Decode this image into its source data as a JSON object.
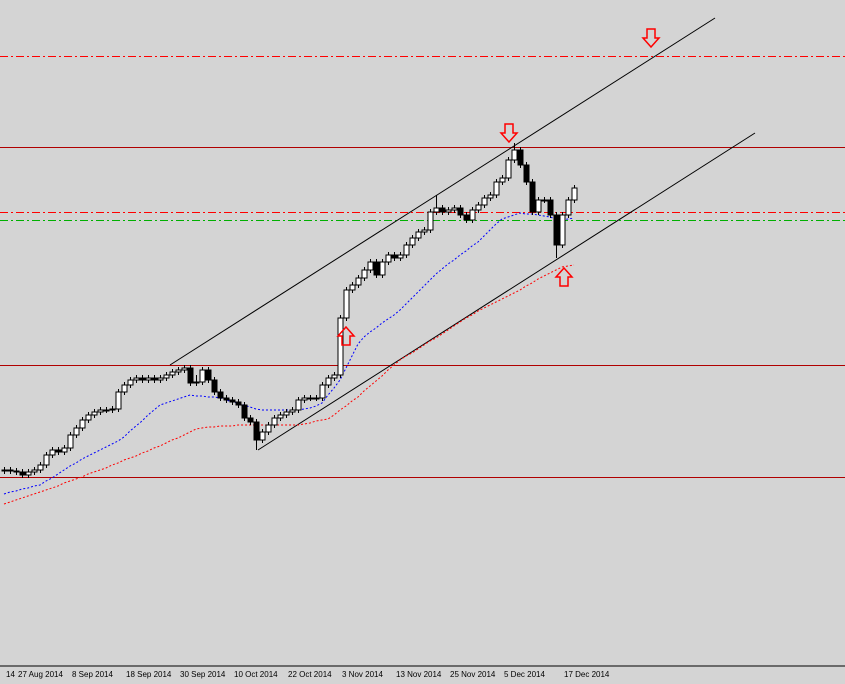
{
  "chart_data": {
    "type": "candlestick",
    "categories": [
      "14",
      null,
      "27 Aug 2014",
      null,
      null,
      null,
      null,
      null,
      null,
      null,
      null,
      "8 Sep 2014",
      null,
      null,
      null,
      null,
      null,
      null,
      null,
      null,
      "18 Sep 2014",
      null,
      null,
      null,
      null,
      null,
      null,
      null,
      null,
      "30 Sep 2014",
      null,
      null,
      null,
      null,
      null,
      null,
      null,
      null,
      "10 Oct 2014",
      null,
      null,
      null,
      null,
      null,
      null,
      null,
      null,
      "22 Oct 2014",
      null,
      null,
      null,
      null,
      null,
      null,
      null,
      null,
      "3 Nov 2014",
      null,
      null,
      null,
      null,
      null,
      null,
      null,
      null,
      "13 Nov 2014",
      null,
      null,
      null,
      null,
      null,
      null,
      null,
      null,
      "25 Nov 2014",
      null,
      null,
      null,
      null,
      null,
      null,
      null,
      null,
      "5 Dec 2014",
      null,
      null,
      null,
      null,
      null,
      null,
      null,
      null,
      null,
      "17 Dec 2014",
      null,
      null
    ],
    "open": [
      194,
      195,
      194,
      193,
      190,
      193,
      195,
      200,
      210,
      215,
      213,
      217,
      230,
      237,
      245,
      250,
      253,
      255,
      255,
      256,
      273,
      280,
      285,
      287,
      285,
      287,
      285,
      287,
      290,
      293,
      295,
      297,
      282,
      283,
      295,
      285,
      273,
      267,
      265,
      263,
      260,
      247,
      243,
      225,
      233,
      240,
      247,
      250,
      253,
      255,
      265,
      267,
      267,
      267,
      280,
      287,
      290,
      347,
      375,
      380,
      387,
      395,
      403,
      390,
      403,
      410,
      407,
      410,
      420,
      427,
      433,
      435,
      453,
      457,
      453,
      455,
      457,
      450,
      445,
      455,
      460,
      467,
      470,
      483,
      487,
      505,
      515,
      500,
      483,
      453,
      465,
      465,
      450,
      420,
      450,
      465
    ],
    "high": [
      198,
      198,
      197,
      196,
      196,
      198,
      203,
      213,
      218,
      218,
      220,
      233,
      240,
      248,
      253,
      256,
      258,
      258,
      259,
      276,
      283,
      288,
      290,
      290,
      290,
      290,
      290,
      293,
      296,
      298,
      300,
      300,
      290,
      298,
      298,
      288,
      276,
      270,
      268,
      266,
      263,
      250,
      246,
      236,
      243,
      250,
      253,
      256,
      258,
      268,
      270,
      270,
      270,
      283,
      290,
      293,
      350,
      378,
      383,
      390,
      398,
      406,
      406,
      406,
      413,
      413,
      413,
      423,
      430,
      436,
      438,
      456,
      470,
      460,
      458,
      460,
      460,
      453,
      458,
      463,
      470,
      473,
      486,
      490,
      508,
      522,
      518,
      503,
      486,
      468,
      468,
      468,
      453,
      453,
      468,
      480
    ],
    "low": [
      191,
      191,
      190,
      187,
      187,
      190,
      192,
      197,
      207,
      210,
      210,
      214,
      227,
      234,
      242,
      247,
      250,
      252,
      252,
      253,
      270,
      277,
      282,
      282,
      282,
      282,
      282,
      284,
      287,
      290,
      292,
      279,
      279,
      280,
      282,
      270,
      264,
      262,
      260,
      257,
      244,
      240,
      215,
      222,
      230,
      237,
      244,
      247,
      250,
      252,
      262,
      264,
      264,
      264,
      277,
      284,
      287,
      344,
      372,
      377,
      384,
      392,
      387,
      387,
      400,
      404,
      404,
      407,
      417,
      424,
      430,
      432,
      450,
      450,
      450,
      452,
      447,
      442,
      442,
      452,
      457,
      464,
      467,
      480,
      484,
      502,
      497,
      480,
      450,
      450,
      462,
      447,
      407,
      417,
      447,
      462
    ],
    "close": [
      195,
      194,
      193,
      190,
      193,
      195,
      200,
      210,
      215,
      213,
      217,
      230,
      237,
      245,
      250,
      253,
      255,
      255,
      256,
      273,
      280,
      285,
      287,
      285,
      287,
      285,
      287,
      290,
      293,
      295,
      297,
      282,
      283,
      295,
      285,
      273,
      267,
      265,
      263,
      260,
      247,
      243,
      225,
      233,
      240,
      247,
      250,
      253,
      255,
      265,
      267,
      267,
      267,
      280,
      287,
      290,
      347,
      375,
      380,
      387,
      395,
      403,
      390,
      403,
      410,
      407,
      410,
      420,
      427,
      433,
      435,
      453,
      457,
      453,
      455,
      457,
      450,
      445,
      455,
      460,
      467,
      470,
      483,
      487,
      505,
      515,
      500,
      483,
      453,
      465,
      465,
      450,
      420,
      450,
      465,
      477
    ],
    "up_color": "#ffffff",
    "down_color": "#000000",
    "wick_color": "#000000",
    "moving_averages": [
      {
        "color": "#0000ff",
        "values": [
          171,
          173,
          174,
          176,
          177,
          179,
          180,
          184,
          187,
          191,
          195,
          199,
          202,
          206,
          209,
          212,
          215,
          218,
          221,
          224,
          228,
          234,
          239,
          244,
          250,
          255,
          260,
          262,
          264,
          266,
          268,
          270,
          269,
          269,
          268,
          268,
          267,
          265,
          263,
          262,
          260,
          258,
          256,
          255,
          255,
          255,
          255,
          255,
          255,
          255,
          256,
          257,
          259,
          262,
          270,
          277,
          285,
          297,
          309,
          321,
          328,
          333,
          337,
          342,
          346,
          350,
          355,
          361,
          367,
          373,
          379,
          385,
          391,
          396,
          401,
          405,
          410,
          414,
          419,
          423,
          429,
          435,
          441,
          446,
          448,
          450,
          452,
          451,
          451,
          450,
          449,
          448,
          446,
          445,
          446,
          447
        ]
      },
      {
        "color": "#ff0000",
        "values": [
          161,
          163,
          165,
          167,
          169,
          171,
          173,
          175,
          177,
          179,
          182,
          184,
          186,
          188,
          191,
          193,
          195,
          197,
          200,
          202,
          205,
          207,
          209,
          212,
          214,
          217,
          219,
          222,
          225,
          227,
          230,
          233,
          236,
          237,
          238,
          238,
          239,
          239,
          239,
          240,
          240,
          240,
          240,
          240,
          240,
          240,
          240,
          240,
          240,
          240,
          241,
          242,
          244,
          245,
          246,
          250,
          255,
          259,
          264,
          268,
          274,
          279,
          284,
          289,
          295,
          300,
          305,
          309,
          312,
          316,
          320,
          324,
          327,
          331,
          335,
          339,
          343,
          347,
          350,
          354,
          357,
          360,
          363,
          366,
          369,
          372,
          375,
          379,
          382,
          386,
          389,
          392,
          395,
          398,
          399,
          400
        ]
      }
    ],
    "levels": [
      {
        "value": 609,
        "color": "#ff0000",
        "style": "dashdot"
      },
      {
        "value": 518,
        "color": "#b00000",
        "style": "solid"
      },
      {
        "value": 453,
        "color": "#ff0000",
        "style": "dashdot"
      },
      {
        "value": 445,
        "color": "#00b000",
        "style": "dashdot"
      },
      {
        "value": 300,
        "color": "#b00000",
        "style": "solid"
      },
      {
        "value": 188,
        "color": "#b00000",
        "style": "solid"
      }
    ],
    "ylim": [
      0,
      665
    ]
  }
}
